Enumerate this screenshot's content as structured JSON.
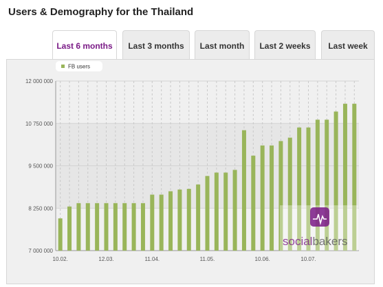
{
  "header": {
    "title": "Users & Demography for the Thailand"
  },
  "tabs": [
    {
      "label": "Last 6 months",
      "active": true
    },
    {
      "label": "Last 3 months",
      "active": false
    },
    {
      "label": "Last month",
      "active": false
    },
    {
      "label": "Last 2 weeks",
      "active": false
    },
    {
      "label": "Last week",
      "active": false
    }
  ],
  "watermark": {
    "part1": "social",
    "part2": "bakers",
    "icon": "socialbakers-logo-icon"
  },
  "colors": {
    "bar": "#99b55a",
    "active_tab": "#7a1a86",
    "logo": "#7a1a86",
    "background": "#f0f0f0"
  },
  "chart_data": {
    "type": "bar",
    "title": "",
    "xlabel": "",
    "ylabel": "",
    "series": [
      {
        "name": "FB users",
        "values": [
          7950000,
          8300000,
          8400000,
          8400000,
          8400000,
          8400000,
          8400000,
          8400000,
          8400000,
          8400000,
          8650000,
          8650000,
          8750000,
          8800000,
          8820000,
          8950000,
          9200000,
          9300000,
          9300000,
          9380000,
          10550000,
          9800000,
          10100000,
          10100000,
          10230000,
          10330000,
          10630000,
          10630000,
          10860000,
          10860000,
          11100000,
          11330000,
          11330000
        ]
      }
    ],
    "ylim": [
      7000000,
      12000000
    ],
    "yticks": [
      {
        "value": 7000000,
        "label": "7 000 000"
      },
      {
        "value": 8250000,
        "label": "8 250 000"
      },
      {
        "value": 9500000,
        "label": "9 500 000"
      },
      {
        "value": 10750000,
        "label": "10 750 000"
      },
      {
        "value": 12000000,
        "label": "12 000 000"
      }
    ],
    "xticks": [
      {
        "index": 0,
        "label": "10.02."
      },
      {
        "index": 5,
        "label": "12.03."
      },
      {
        "index": 10,
        "label": "11.04."
      },
      {
        "index": 16,
        "label": "11.05."
      },
      {
        "index": 22,
        "label": "10.06."
      },
      {
        "index": 27,
        "label": "10.07."
      }
    ],
    "legend": {
      "entries": [
        "FB users"
      ],
      "placement": "top-left"
    },
    "grid": {
      "vertical_dashed": true
    }
  }
}
